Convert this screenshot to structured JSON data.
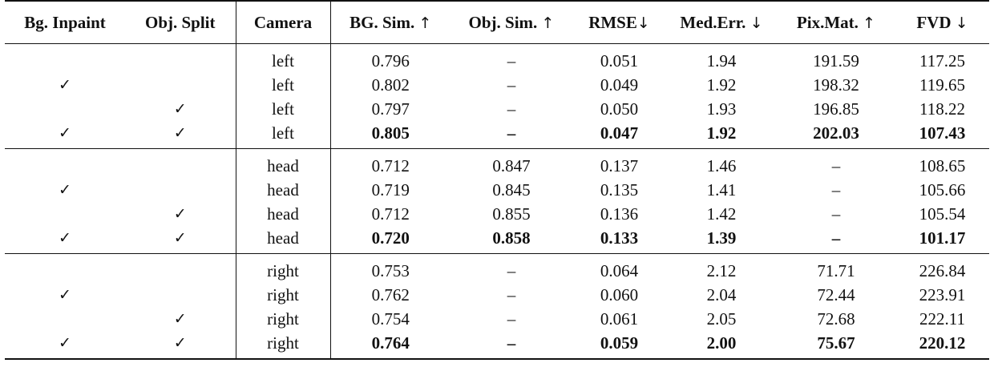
{
  "header": {
    "columns": [
      {
        "label": "Bg. Inpaint",
        "arrow": ""
      },
      {
        "label": "Obj. Split",
        "arrow": ""
      },
      {
        "label": "Camera",
        "arrow": ""
      },
      {
        "label": "BG. Sim.",
        "arrow": "↑"
      },
      {
        "label": "Obj. Sim.",
        "arrow": "↑"
      },
      {
        "label": "RMSE",
        "arrow": "↓"
      },
      {
        "label": "Med.Err.",
        "arrow": "↓"
      },
      {
        "label": "Pix.Mat.",
        "arrow": "↑"
      },
      {
        "label": "FVD",
        "arrow": "↓"
      }
    ]
  },
  "check_mark": "✓",
  "groups": [
    {
      "rows": [
        {
          "bg": "",
          "obj": "",
          "camera": "left",
          "bg_sim": "0.796",
          "obj_sim": "–",
          "rmse": "0.051",
          "med_err": "1.94",
          "pix_mat": "191.59",
          "fvd": "117.25"
        },
        {
          "bg": "✓",
          "obj": "",
          "camera": "left",
          "bg_sim": "0.802",
          "obj_sim": "–",
          "rmse": "0.049",
          "med_err": "1.92",
          "pix_mat": "198.32",
          "fvd": "119.65"
        },
        {
          "bg": "",
          "obj": "✓",
          "camera": "left",
          "bg_sim": "0.797",
          "obj_sim": "–",
          "rmse": "0.050",
          "med_err": "1.93",
          "pix_mat": "196.85",
          "fvd": "118.22"
        },
        {
          "bg": "✓",
          "obj": "✓",
          "camera": "left",
          "bg_sim": "0.805",
          "obj_sim": "–",
          "rmse": "0.047",
          "med_err": "1.92",
          "pix_mat": "202.03",
          "fvd": "107.43",
          "bold": true
        }
      ]
    },
    {
      "rows": [
        {
          "bg": "",
          "obj": "",
          "camera": "head",
          "bg_sim": "0.712",
          "obj_sim": "0.847",
          "rmse": "0.137",
          "med_err": "1.46",
          "pix_mat": "–",
          "fvd": "108.65"
        },
        {
          "bg": "✓",
          "obj": "",
          "camera": "head",
          "bg_sim": "0.719",
          "obj_sim": "0.845",
          "rmse": "0.135",
          "med_err": "1.41",
          "pix_mat": "–",
          "fvd": "105.66"
        },
        {
          "bg": "",
          "obj": "✓",
          "camera": "head",
          "bg_sim": "0.712",
          "obj_sim": "0.855",
          "rmse": "0.136",
          "med_err": "1.42",
          "pix_mat": "–",
          "fvd": "105.54"
        },
        {
          "bg": "✓",
          "obj": "✓",
          "camera": "head",
          "bg_sim": "0.720",
          "obj_sim": "0.858",
          "rmse": "0.133",
          "med_err": "1.39",
          "pix_mat": "–",
          "fvd": "101.17",
          "bold": true
        }
      ]
    },
    {
      "rows": [
        {
          "bg": "",
          "obj": "",
          "camera": "right",
          "bg_sim": "0.753",
          "obj_sim": "–",
          "rmse": "0.064",
          "med_err": "2.12",
          "pix_mat": "71.71",
          "fvd": "226.84"
        },
        {
          "bg": "✓",
          "obj": "",
          "camera": "right",
          "bg_sim": "0.762",
          "obj_sim": "–",
          "rmse": "0.060",
          "med_err": "2.04",
          "pix_mat": "72.44",
          "fvd": "223.91"
        },
        {
          "bg": "",
          "obj": "✓",
          "camera": "right",
          "bg_sim": "0.754",
          "obj_sim": "–",
          "rmse": "0.061",
          "med_err": "2.05",
          "pix_mat": "72.68",
          "fvd": "222.11"
        },
        {
          "bg": "✓",
          "obj": "✓",
          "camera": "right",
          "bg_sim": "0.764",
          "obj_sim": "–",
          "rmse": "0.059",
          "med_err": "2.00",
          "pix_mat": "75.67",
          "fvd": "220.12",
          "bold": true
        }
      ]
    }
  ]
}
